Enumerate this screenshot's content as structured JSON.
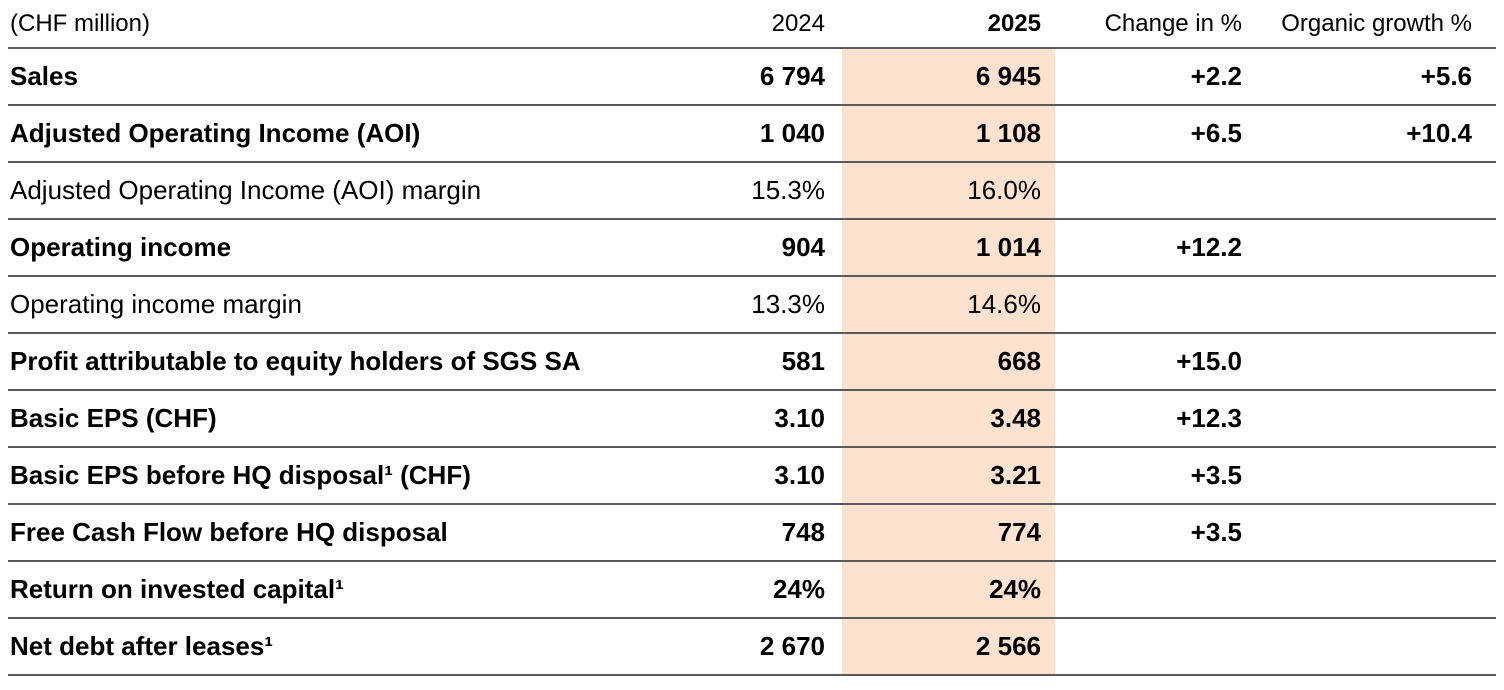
{
  "table": {
    "unit_label": "(CHF million)",
    "columns": {
      "y2024": "2024",
      "y2025": "2025",
      "change": "Change in %",
      "organic": "Organic growth %"
    },
    "highlight_color": "#fce2cf",
    "rows": [
      {
        "label": "Sales",
        "y2024": "6 794",
        "y2025": "6 945",
        "change": "+2.2",
        "organic": "+5.6",
        "emphasis": "bold"
      },
      {
        "label": "Adjusted Operating Income (AOI)",
        "y2024": "1 040",
        "y2025": "1 108",
        "change": "+6.5",
        "organic": "+10.4",
        "emphasis": "bold"
      },
      {
        "label": "Adjusted Operating Income (AOI) margin",
        "y2024": "15.3%",
        "y2025": "16.0%",
        "change": "",
        "organic": "",
        "emphasis": "regular"
      },
      {
        "label": "Operating income",
        "y2024": "904",
        "y2025": "1 014",
        "change": "+12.2",
        "organic": "",
        "emphasis": "bold"
      },
      {
        "label": "Operating income margin",
        "y2024": "13.3%",
        "y2025": "14.6%",
        "change": "",
        "organic": "",
        "emphasis": "regular"
      },
      {
        "label": "Profit attributable to equity holders of SGS SA",
        "y2024": "581",
        "y2025": "668",
        "change": "+15.0",
        "organic": "",
        "emphasis": "bold"
      },
      {
        "label": "Basic EPS (CHF)",
        "y2024": "3.10",
        "y2025": "3.48",
        "change": "+12.3",
        "organic": "",
        "emphasis": "bold"
      },
      {
        "label": "Basic EPS before HQ disposal¹ (CHF)",
        "y2024": "3.10",
        "y2025": "3.21",
        "change": "+3.5",
        "organic": "",
        "emphasis": "bold"
      },
      {
        "label": "Free Cash Flow before HQ disposal",
        "y2024": "748",
        "y2025": "774",
        "change": "+3.5",
        "organic": "",
        "emphasis": "bold"
      },
      {
        "label": "Return on invested capital¹",
        "y2024": "24%",
        "y2025": "24%",
        "change": "",
        "organic": "",
        "emphasis": "bold"
      },
      {
        "label": "Net debt after leases¹",
        "y2024": "2 670",
        "y2025": "2 566",
        "change": "",
        "organic": "",
        "emphasis": "bold"
      }
    ]
  }
}
